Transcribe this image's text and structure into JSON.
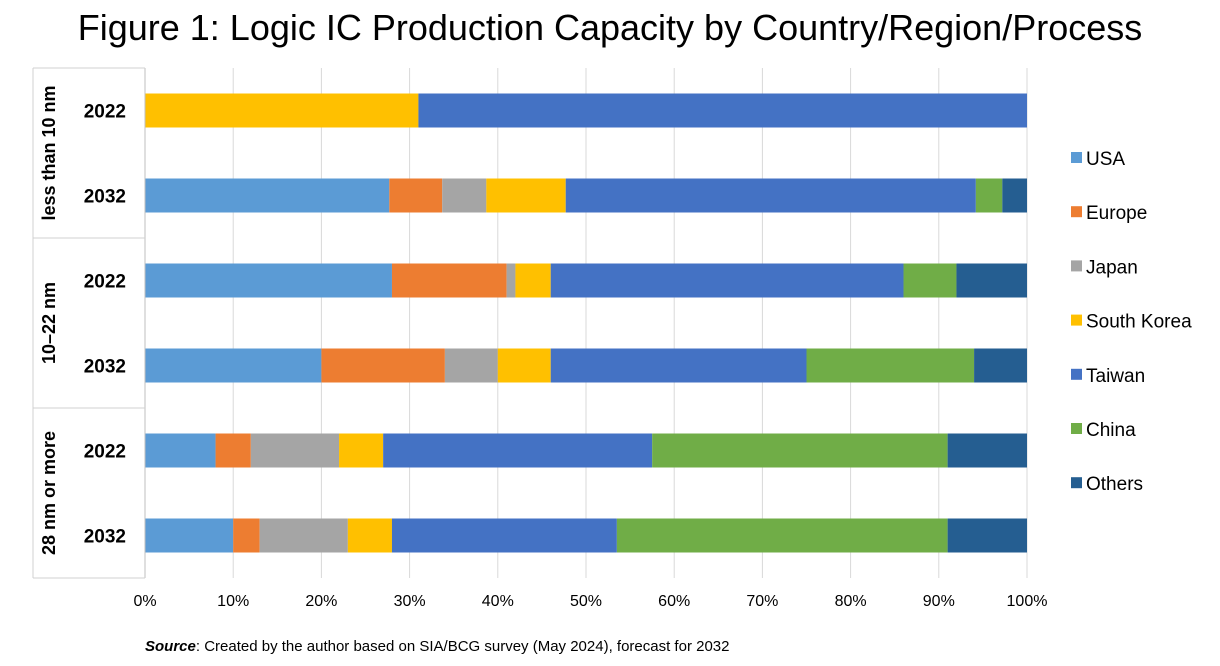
{
  "chart_data": {
    "type": "bar",
    "orientation": "horizontal",
    "stacked": "percent",
    "title": "Figure 1: Logic IC Production Capacity by Country/Region/Process",
    "groups": [
      {
        "label": "less than 10 nm",
        "categories": [
          "2022",
          "2032"
        ]
      },
      {
        "label": "10–22 nm",
        "categories": [
          "2022",
          "2032"
        ]
      },
      {
        "label": "28 nm or more",
        "categories": [
          "2022",
          "2032"
        ]
      }
    ],
    "categories": [
      "less than 10 nm 2022",
      "less than 10 nm 2032",
      "10–22 nm 2022",
      "10–22 nm 2032",
      "28 nm or more 2022",
      "28 nm or more 2032"
    ],
    "series": [
      {
        "name": "USA",
        "color": "#5B9BD5",
        "values": [
          0,
          27.7,
          28,
          20,
          8,
          10
        ]
      },
      {
        "name": "Europe",
        "color": "#ED7D31",
        "values": [
          0,
          6,
          13,
          14,
          4,
          3
        ]
      },
      {
        "name": "Japan",
        "color": "#A5A5A5",
        "values": [
          0,
          5,
          1,
          6,
          10,
          10
        ]
      },
      {
        "name": "South Korea",
        "color": "#FFC000",
        "values": [
          31,
          9,
          4,
          6,
          5,
          5
        ]
      },
      {
        "name": "Taiwan",
        "color": "#4472C4",
        "values": [
          69,
          46.5,
          40,
          29,
          30.5,
          25.5
        ]
      },
      {
        "name": "China",
        "color": "#70AD47",
        "values": [
          0,
          3,
          6,
          19,
          33.5,
          37.5
        ]
      },
      {
        "name": "Others",
        "color": "#255E91",
        "values": [
          0,
          2.8,
          8,
          6,
          9,
          9
        ]
      }
    ],
    "legend_labels": [
      "USA",
      "Europe",
      "Japan",
      "South Korea",
      "Taiwan",
      "China",
      " Others"
    ],
    "xlim": [
      0,
      100
    ],
    "x_ticks": [
      0,
      10,
      20,
      30,
      40,
      50,
      60,
      70,
      80,
      90,
      100
    ],
    "x_tick_labels": [
      "0%",
      "10%",
      "20%",
      "30%",
      "40%",
      "50%",
      "60%",
      "70%",
      "80%",
      "90%",
      "100%"
    ],
    "xlabel": "",
    "ylabel": "",
    "grid": "vertical",
    "legend_position": "right"
  },
  "source": {
    "label": "Source",
    "text": ": Created by the author based on SIA/BCG survey (May 2024), forecast for 2032"
  }
}
